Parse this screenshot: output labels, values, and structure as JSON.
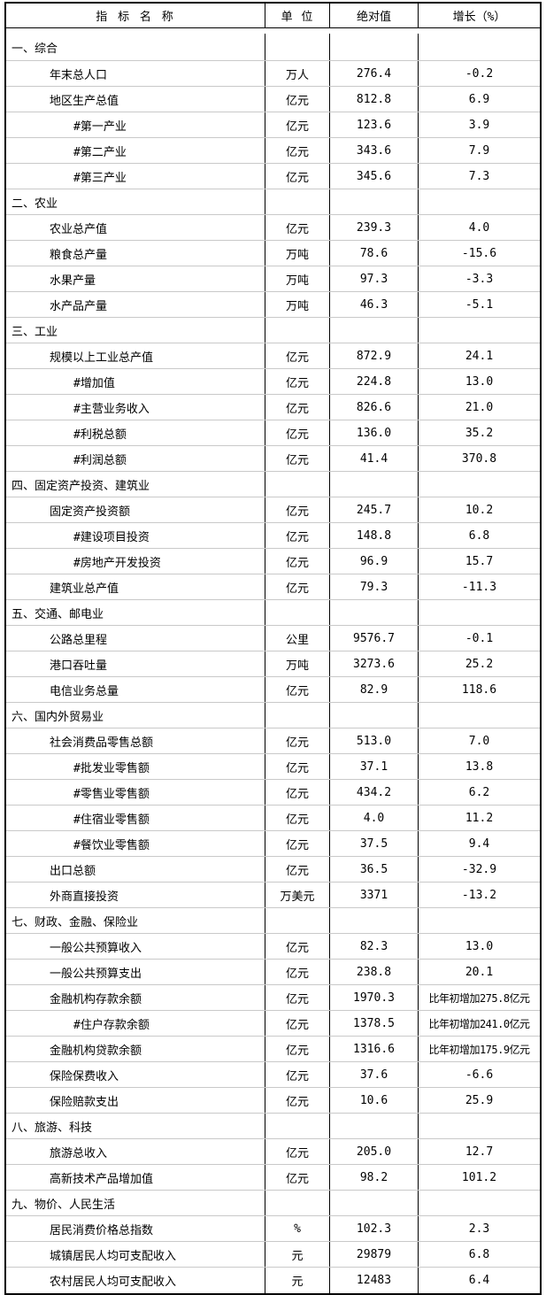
{
  "table": {
    "title_semantic": "statistical-indicators-table",
    "headers": [
      "指 标 名 称",
      "单 位",
      "绝对值",
      "增长（%）"
    ],
    "rows": [
      {
        "level": "section",
        "name": "一、综合",
        "unit": "",
        "value": "",
        "growth": ""
      },
      {
        "level": "item",
        "name": "年末总人口",
        "unit": "万人",
        "value": "276.4",
        "growth": "-0.2"
      },
      {
        "level": "item",
        "name": "地区生产总值",
        "unit": "亿元",
        "value": "812.8",
        "growth": "6.9"
      },
      {
        "level": "sub",
        "name": "#第一产业",
        "unit": "亿元",
        "value": "123.6",
        "growth": "3.9"
      },
      {
        "level": "sub",
        "name": "#第二产业",
        "unit": "亿元",
        "value": "343.6",
        "growth": "7.9"
      },
      {
        "level": "sub",
        "name": "#第三产业",
        "unit": "亿元",
        "value": "345.6",
        "growth": "7.3"
      },
      {
        "level": "section",
        "name": "二、农业",
        "unit": "",
        "value": "",
        "growth": ""
      },
      {
        "level": "item",
        "name": "农业总产值",
        "unit": "亿元",
        "value": "239.3",
        "growth": "4.0"
      },
      {
        "level": "item",
        "name": "粮食总产量",
        "unit": "万吨",
        "value": "78.6",
        "growth": "-15.6"
      },
      {
        "level": "item",
        "name": "水果产量",
        "unit": "万吨",
        "value": "97.3",
        "growth": "-3.3"
      },
      {
        "level": "item",
        "name": "水产品产量",
        "unit": "万吨",
        "value": "46.3",
        "growth": "-5.1"
      },
      {
        "level": "section",
        "name": "三、工业",
        "unit": "",
        "value": "",
        "growth": ""
      },
      {
        "level": "item",
        "name": "规模以上工业总产值",
        "unit": "亿元",
        "value": "872.9",
        "growth": "24.1"
      },
      {
        "level": "sub",
        "name": "#增加值",
        "unit": "亿元",
        "value": "224.8",
        "growth": "13.0"
      },
      {
        "level": "sub",
        "name": "#主营业务收入",
        "unit": "亿元",
        "value": "826.6",
        "growth": "21.0"
      },
      {
        "level": "sub",
        "name": "#利税总额",
        "unit": "亿元",
        "value": "136.0",
        "growth": "35.2"
      },
      {
        "level": "sub",
        "name": "#利润总额",
        "unit": "亿元",
        "value": "41.4",
        "growth": "370.8"
      },
      {
        "level": "section",
        "name": "四、固定资产投资、建筑业",
        "unit": "",
        "value": "",
        "growth": ""
      },
      {
        "level": "item",
        "name": "固定资产投资额",
        "unit": "亿元",
        "value": "245.7",
        "growth": "10.2"
      },
      {
        "level": "sub",
        "name": "#建设项目投资",
        "unit": "亿元",
        "value": "148.8",
        "growth": "6.8"
      },
      {
        "level": "sub",
        "name": "#房地产开发投资",
        "unit": "亿元",
        "value": "96.9",
        "growth": "15.7"
      },
      {
        "level": "item",
        "name": "建筑业总产值",
        "unit": "亿元",
        "value": "79.3",
        "growth": "-11.3"
      },
      {
        "level": "section",
        "name": "五、交通、邮电业",
        "unit": "",
        "value": "",
        "growth": ""
      },
      {
        "level": "item",
        "name": "公路总里程",
        "unit": "公里",
        "value": "9576.7",
        "growth": "-0.1"
      },
      {
        "level": "item",
        "name": "港口吞吐量",
        "unit": "万吨",
        "value": "3273.6",
        "growth": "25.2"
      },
      {
        "level": "item",
        "name": "电信业务总量",
        "unit": "亿元",
        "value": "82.9",
        "growth": "118.6"
      },
      {
        "level": "section",
        "name": "六、国内外贸易业",
        "unit": "",
        "value": "",
        "growth": ""
      },
      {
        "level": "item",
        "name": "社会消费品零售总额",
        "unit": "亿元",
        "value": "513.0",
        "growth": "7.0"
      },
      {
        "level": "sub",
        "name": "#批发业零售额",
        "unit": "亿元",
        "value": "37.1",
        "growth": "13.8"
      },
      {
        "level": "sub",
        "name": "#零售业零售额",
        "unit": "亿元",
        "value": "434.2",
        "growth": "6.2"
      },
      {
        "level": "sub",
        "name": "#住宿业零售额",
        "unit": "亿元",
        "value": "4.0",
        "growth": "11.2"
      },
      {
        "level": "sub",
        "name": "#餐饮业零售额",
        "unit": "亿元",
        "value": "37.5",
        "growth": "9.4"
      },
      {
        "level": "item",
        "name": "出口总额",
        "unit": "亿元",
        "value": "36.5",
        "growth": "-32.9"
      },
      {
        "level": "item",
        "name": "外商直接投资",
        "unit": "万美元",
        "value": "3371",
        "growth": "-13.2"
      },
      {
        "level": "section",
        "name": "七、财政、金融、保险业",
        "unit": "",
        "value": "",
        "growth": ""
      },
      {
        "level": "item",
        "name": "一般公共预算收入",
        "unit": "亿元",
        "value": "82.3",
        "growth": "13.0"
      },
      {
        "level": "item",
        "name": "一般公共预算支出",
        "unit": "亿元",
        "value": "238.8",
        "growth": "20.1"
      },
      {
        "level": "item",
        "name": "金融机构存款余额",
        "unit": "亿元",
        "value": "1970.3",
        "growth": "比年初增加275.8亿元"
      },
      {
        "level": "sub",
        "name": "#住户存款余额",
        "unit": "亿元",
        "value": "1378.5",
        "growth": "比年初增加241.0亿元"
      },
      {
        "level": "item",
        "name": "金融机构贷款余额",
        "unit": "亿元",
        "value": "1316.6",
        "growth": "比年初增加175.9亿元"
      },
      {
        "level": "item",
        "name": "保险保费收入",
        "unit": "亿元",
        "value": "37.6",
        "growth": "-6.6"
      },
      {
        "level": "item",
        "name": "保险赔款支出",
        "unit": "亿元",
        "value": "10.6",
        "growth": "25.9"
      },
      {
        "level": "section",
        "name": "八、旅游、科技",
        "unit": "",
        "value": "",
        "growth": ""
      },
      {
        "level": "item",
        "name": "旅游总收入",
        "unit": "亿元",
        "value": "205.0",
        "growth": "12.7"
      },
      {
        "level": "item",
        "name": "高新技术产品增加值",
        "unit": "亿元",
        "value": "98.2",
        "growth": "101.2"
      },
      {
        "level": "section",
        "name": "九、物价、人民生活",
        "unit": "",
        "value": "",
        "growth": ""
      },
      {
        "level": "item",
        "name": "居民消费价格总指数",
        "unit": "%",
        "value": "102.3",
        "growth": "2.3"
      },
      {
        "level": "item",
        "name": "城镇居民人均可支配收入",
        "unit": "元",
        "value": "29879",
        "growth": "6.8"
      },
      {
        "level": "item",
        "name": "农村居民人均可支配收入",
        "unit": "元",
        "value": "12483",
        "growth": "6.4"
      }
    ],
    "colors": {
      "border_outer": "#000000",
      "border_column": "#000000",
      "row_separator": "#c9c9c9",
      "text": "#000000",
      "background": "#ffffff"
    }
  }
}
